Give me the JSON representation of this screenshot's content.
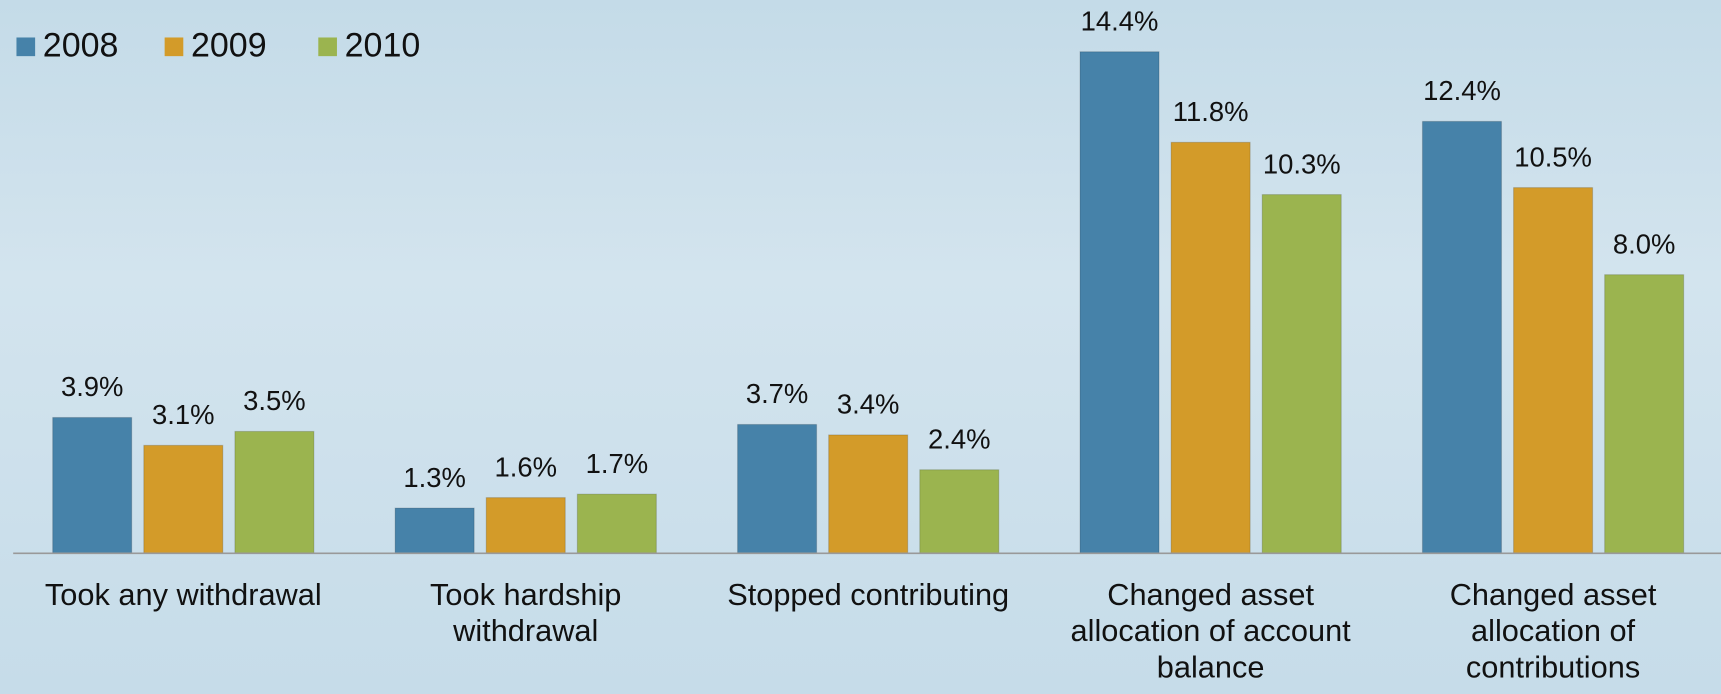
{
  "chart_data": {
    "type": "bar",
    "categories": [
      "Took any withdrawal",
      "Took hardship withdrawal",
      "Stopped contributing",
      "Changed asset allocation of account balance",
      "Changed asset allocation of contributions"
    ],
    "series": [
      {
        "name": "2008",
        "color": "#4682a9",
        "values": [
          3.9,
          1.3,
          3.7,
          14.4,
          12.4
        ],
        "value_labels": [
          "3.9%",
          "1.3%",
          "3.7%",
          "14.4%",
          "12.4%"
        ]
      },
      {
        "name": "2009",
        "color": "#d39b29",
        "values": [
          3.1,
          1.6,
          3.4,
          11.8,
          10.5
        ],
        "value_labels": [
          "3.1%",
          "1.6%",
          "3.4%",
          "11.8%",
          "10.5%"
        ]
      },
      {
        "name": "2010",
        "color": "#9bb44f",
        "values": [
          3.5,
          1.7,
          2.4,
          10.3,
          8.0
        ],
        "value_labels": [
          "3.5%",
          "1.7%",
          "2.4%",
          "10.3%",
          "8.0%"
        ]
      }
    ],
    "legend": "top-left"
  }
}
